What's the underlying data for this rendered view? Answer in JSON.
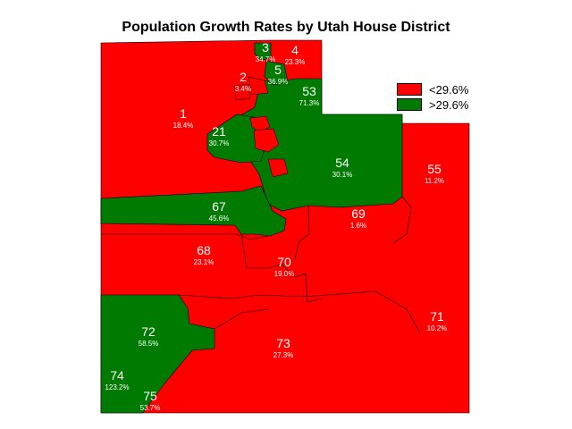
{
  "title": "Population Growth Rates by Utah House District",
  "colors": {
    "low": "#ff0000",
    "high": "#007a00",
    "border": "#000000",
    "label": "#ffffff"
  },
  "legend": [
    {
      "label": "<29.6%",
      "color_key": "low"
    },
    {
      "label": ">29.6%",
      "color_key": "high"
    }
  ],
  "districts": [
    {
      "id": "1",
      "rate": "18.4%",
      "category": "low"
    },
    {
      "id": "2",
      "rate": "3.4%",
      "category": "low"
    },
    {
      "id": "3",
      "rate": "34.7%",
      "category": "high"
    },
    {
      "id": "4",
      "rate": "23.3%",
      "category": "low"
    },
    {
      "id": "5",
      "rate": "36.9%",
      "category": "high"
    },
    {
      "id": "21",
      "rate": "30.7%",
      "category": "high"
    },
    {
      "id": "53",
      "rate": "71.3%",
      "category": "high"
    },
    {
      "id": "54",
      "rate": "30.1%",
      "category": "high"
    },
    {
      "id": "55",
      "rate": "11.2%",
      "category": "low"
    },
    {
      "id": "67",
      "rate": "45.6%",
      "category": "high"
    },
    {
      "id": "68",
      "rate": "23.1%",
      "category": "low"
    },
    {
      "id": "69",
      "rate": "1.6%",
      "category": "low"
    },
    {
      "id": "70",
      "rate": "19.0%",
      "category": "low"
    },
    {
      "id": "71",
      "rate": "10.2%",
      "category": "low"
    },
    {
      "id": "72",
      "rate": "58.5%",
      "category": "high"
    },
    {
      "id": "73",
      "rate": "27.3%",
      "category": "low"
    },
    {
      "id": "74",
      "rate": "123.2%",
      "category": "high"
    },
    {
      "id": "75",
      "rate": "53.7%",
      "category": "high"
    }
  ]
}
